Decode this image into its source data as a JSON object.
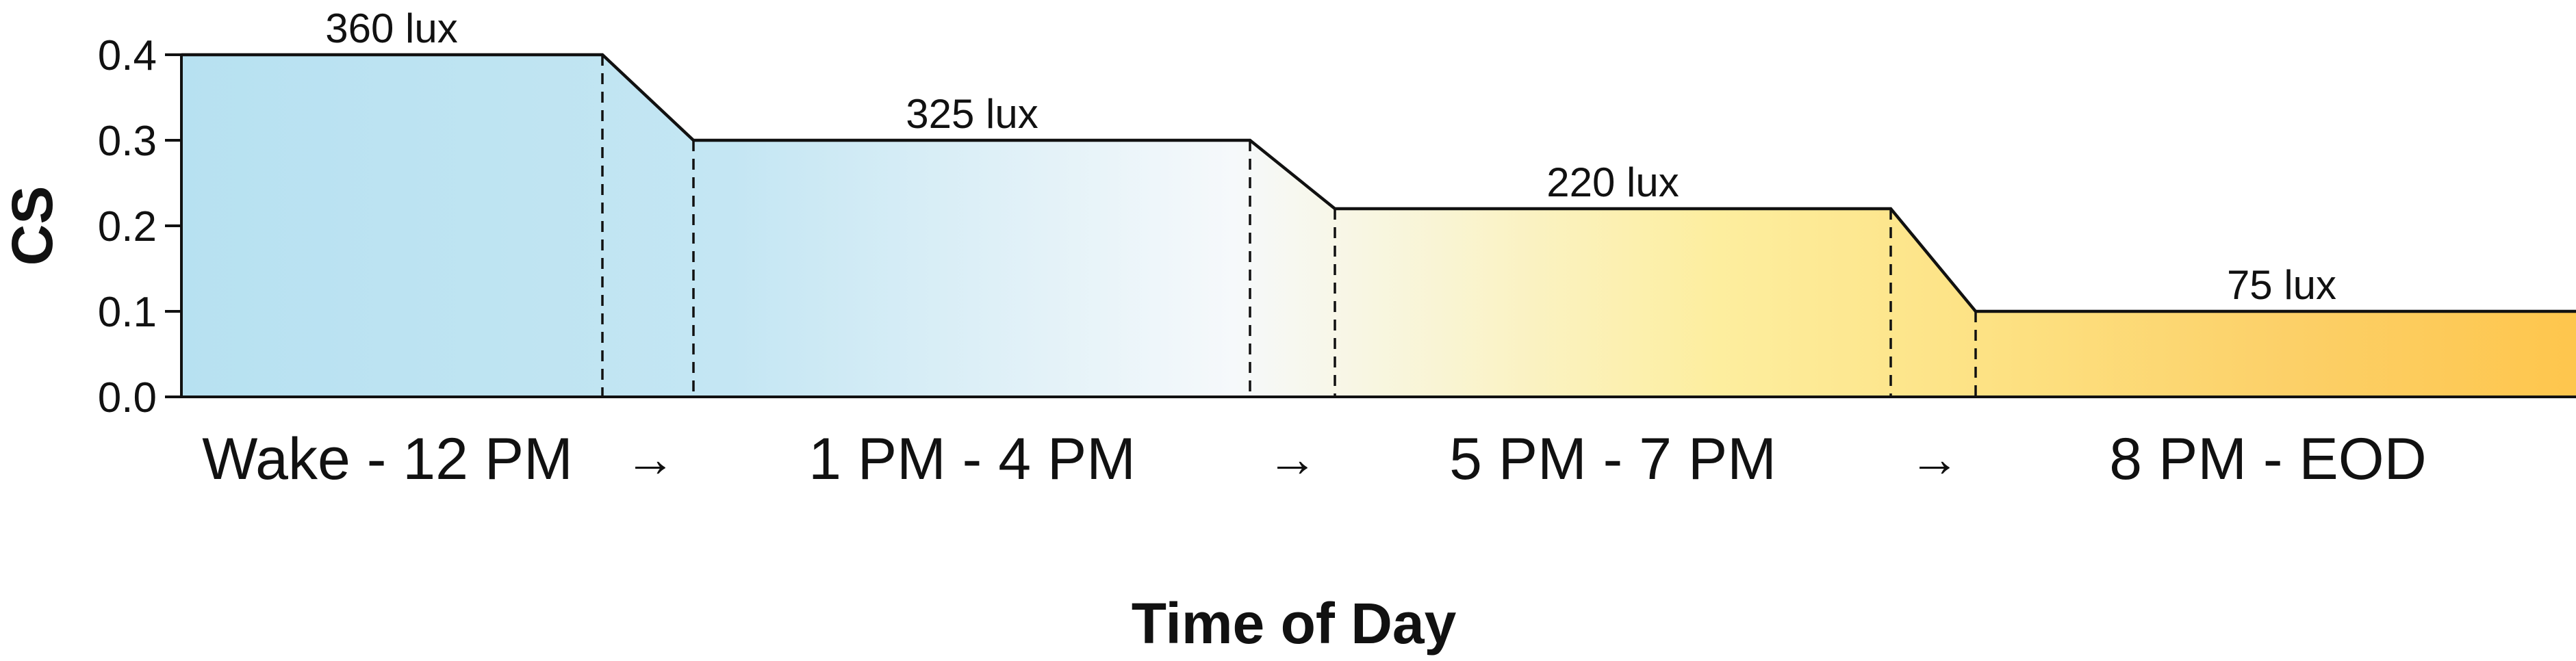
{
  "chart_data": {
    "type": "area",
    "xlabel": "Time of Day",
    "ylabel": "CS",
    "ylim": [
      0,
      0.4
    ],
    "yticks": [
      "0.0",
      "0.1",
      "0.2",
      "0.3",
      "0.4"
    ],
    "categories": [
      "Wake - 12 PM",
      "1 PM - 4 PM",
      "5 PM - 7 PM",
      "8 PM - EOD"
    ],
    "values": [
      0.4,
      0.3,
      0.22,
      0.1
    ],
    "value_labels": [
      "360 lux",
      "325 lux",
      "220 lux",
      "75 lux"
    ],
    "transition_symbol": "→",
    "gradient_colors": [
      "#b7e1f1",
      "#c4e6f3",
      "#f6f9fb",
      "#fdee9f",
      "#fde080",
      "#fcd068",
      "#fec64d"
    ],
    "grid": false,
    "legend": "none"
  }
}
